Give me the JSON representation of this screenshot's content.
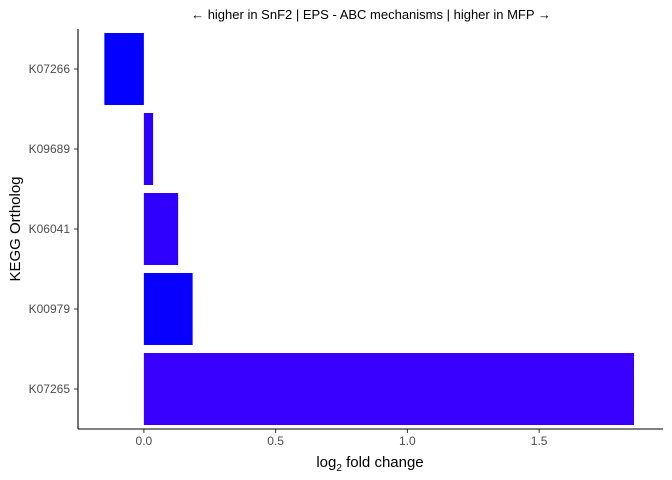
{
  "chart_data": {
    "type": "bar",
    "orientation": "horizontal",
    "title": "← higher in SnF2 | EPS - ABC mechanisms | higher in MFP →",
    "xlabel_prefix": "log",
    "xlabel_subscript": "2",
    "xlabel_suffix": " fold change",
    "ylabel": "KEGG Ortholog",
    "categories": [
      "K07266",
      "K09689",
      "K06041",
      "K00979",
      "K07265"
    ],
    "values": [
      -0.15,
      0.035,
      0.13,
      0.185,
      1.86
    ],
    "colors": [
      "#0400ff",
      "#2b00ff",
      "#3000ff",
      "#0800ff",
      "#3a00ff"
    ],
    "xlim": [
      -0.25,
      1.97
    ],
    "xticks": [
      0.0,
      0.5,
      1.0,
      1.5
    ],
    "xtick_labels": [
      "0.0",
      "0.5",
      "1.0",
      "1.5"
    ],
    "grid": false,
    "legend": "none"
  }
}
